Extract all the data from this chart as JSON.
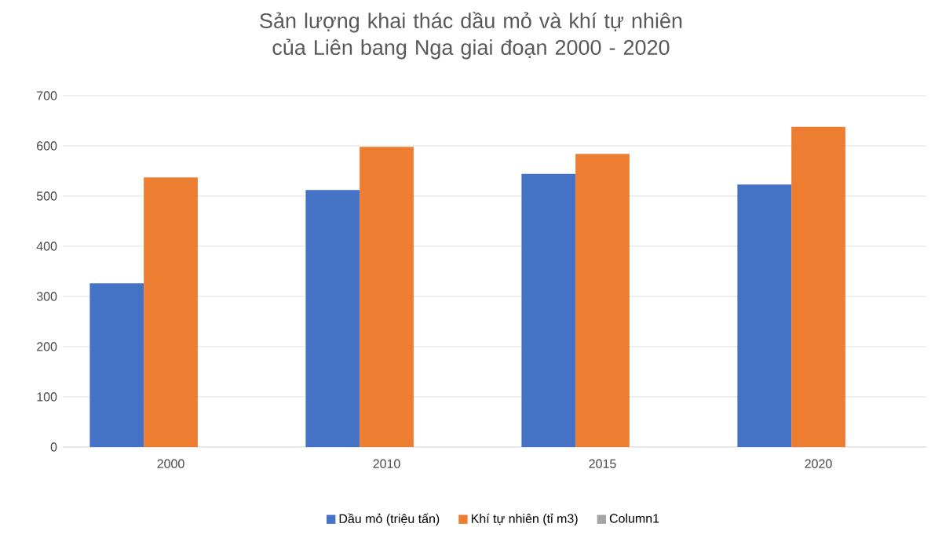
{
  "chart_data": {
    "type": "bar",
    "title": "Sản lượng khai thác dầu mỏ và khí tự nhiên của Liên bang Nga giai đoạn 2000 - 2020",
    "categories": [
      "2000",
      "2010",
      "2015",
      "2020"
    ],
    "series": [
      {
        "name": "Dầu mỏ (triệu tấn)",
        "color": "#4472c4",
        "values": [
          326,
          512,
          544,
          523
        ]
      },
      {
        "name": "Khí tự nhiên (tỉ m3)",
        "color": "#ed7d31",
        "values": [
          537,
          598,
          584,
          638
        ]
      },
      {
        "name": "Column1",
        "color": "#a5a5a5",
        "values": [
          null,
          null,
          null,
          null
        ]
      }
    ],
    "ylim": [
      0,
      700
    ],
    "yticks": [
      0,
      100,
      200,
      300,
      400,
      500,
      600,
      700
    ],
    "grid": "y",
    "legend": "bottom"
  }
}
